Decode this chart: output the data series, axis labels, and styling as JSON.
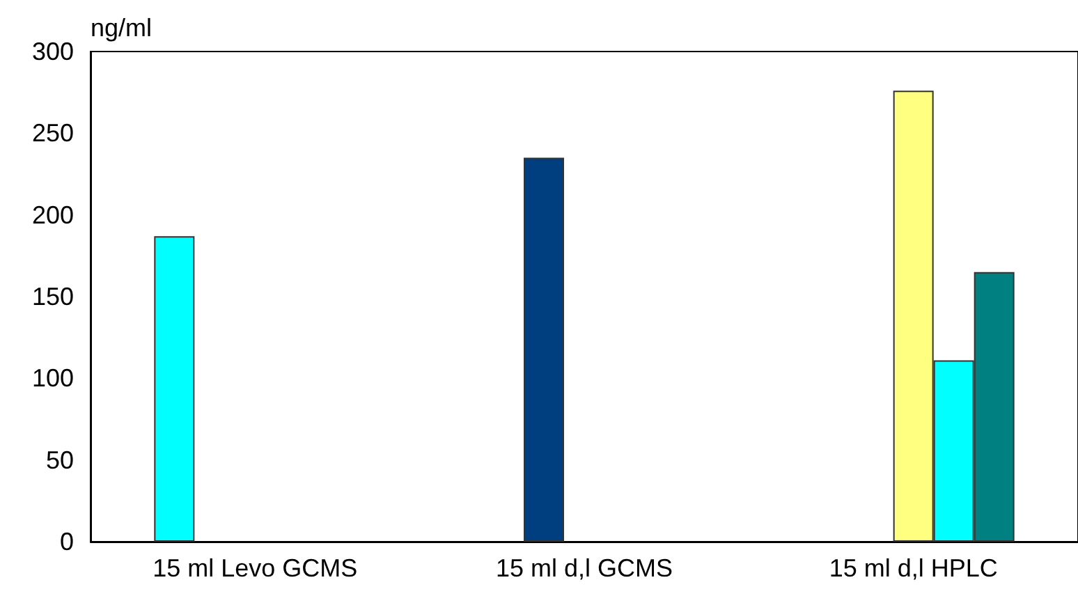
{
  "chart_data": {
    "type": "bar",
    "ylabel": "ng/ml",
    "categories": [
      "15 ml Levo GCMS",
      "15 ml d,l GCMS",
      "15 ml d,l HPLC"
    ],
    "series": [
      {
        "color": "#00ffff",
        "values": [
          187,
          null,
          null
        ]
      },
      {
        "color": "#003f7f",
        "values": [
          null,
          235,
          null
        ]
      },
      {
        "color": "#ffff80",
        "values": [
          null,
          null,
          276
        ]
      },
      {
        "color": "#00ffff",
        "values": [
          null,
          null,
          111
        ]
      },
      {
        "color": "#008080",
        "values": [
          null,
          null,
          165
        ]
      }
    ],
    "ylim": [
      0,
      300
    ],
    "yticks": [
      0,
      50,
      100,
      150,
      200,
      250,
      300
    ],
    "grid": false
  }
}
